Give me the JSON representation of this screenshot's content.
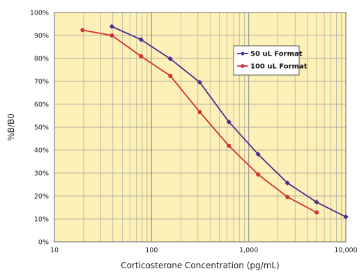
{
  "colors": {
    "plot_background": "#fdf1b8",
    "gridline": "#9a9a9a",
    "series_50": "#4b2a8f",
    "series_100": "#d32f2f"
  },
  "chart_data": {
    "type": "line",
    "x_scale": "log",
    "xlabel": "Corticosterone Concentration (pg/mL)",
    "ylabel": "%B/B0",
    "xlim": [
      10,
      10000
    ],
    "ylim": [
      0,
      100
    ],
    "x_ticks": [
      {
        "value": 10,
        "label": "10"
      },
      {
        "value": 100,
        "label": "100"
      },
      {
        "value": 1000,
        "label": "1,000"
      },
      {
        "value": 10000,
        "label": "10,000"
      }
    ],
    "y_ticks": [
      {
        "value": 0,
        "label": "0%"
      },
      {
        "value": 10,
        "label": "10%"
      },
      {
        "value": 20,
        "label": "20%"
      },
      {
        "value": 30,
        "label": "30%"
      },
      {
        "value": 40,
        "label": "40%"
      },
      {
        "value": 50,
        "label": "50%"
      },
      {
        "value": 60,
        "label": "60%"
      },
      {
        "value": 70,
        "label": "70%"
      },
      {
        "value": 80,
        "label": "80%"
      },
      {
        "value": 90,
        "label": "90%"
      },
      {
        "value": 100,
        "label": "100%"
      }
    ],
    "grid": true,
    "legend_position": "top-right",
    "series": [
      {
        "name": "50 uL Format",
        "color": "#4b2a8f",
        "marker": "diamond",
        "x": [
          39,
          78,
          156,
          313,
          625,
          1250,
          2500,
          5000,
          10000
        ],
        "y": [
          93.9,
          88.2,
          79.8,
          69.6,
          52.3,
          38.2,
          25.7,
          17.3,
          10.9
        ]
      },
      {
        "name": "100 uL Format",
        "color": "#d32f2f",
        "marker": "circle",
        "x": [
          19.5,
          39,
          78,
          156,
          313,
          625,
          1250,
          2500,
          5000
        ],
        "y": [
          92.3,
          90.0,
          80.9,
          72.4,
          56.6,
          41.9,
          29.4,
          19.6,
          12.8
        ]
      }
    ]
  }
}
